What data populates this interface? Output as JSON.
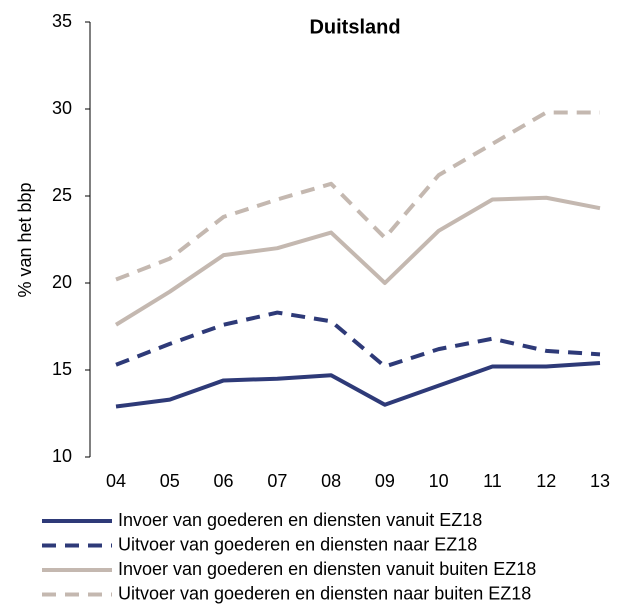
{
  "chart_data": {
    "type": "line",
    "title": "Duitsland",
    "y_label": "% van het bbp",
    "categories": [
      "04",
      "05",
      "06",
      "07",
      "08",
      "09",
      "10",
      "11",
      "12",
      "13"
    ],
    "ylim": [
      10,
      35
    ],
    "yticks": [
      10,
      15,
      20,
      25,
      30,
      35
    ],
    "grid": false,
    "series": [
      {
        "name": "Invoer van goederen en diensten vanuit EZ18",
        "color": "#2e3a78",
        "dash": false,
        "values": [
          12.9,
          13.3,
          14.4,
          14.5,
          14.7,
          13.0,
          14.1,
          15.2,
          15.2,
          15.4
        ]
      },
      {
        "name": "Uitvoer van goederen en diensten naar EZ18",
        "color": "#2e3a78",
        "dash": true,
        "values": [
          15.3,
          16.5,
          17.6,
          18.3,
          17.8,
          15.2,
          16.2,
          16.8,
          16.1,
          15.9
        ]
      },
      {
        "name": "Invoer van goederen en diensten vanuit buiten EZ18",
        "color": "#c4b8b0",
        "dash": false,
        "values": [
          17.6,
          19.5,
          21.6,
          22.0,
          22.9,
          20.0,
          23.0,
          24.8,
          24.9,
          24.3
        ]
      },
      {
        "name": "Uitvoer van goederen en diensten naar buiten EZ18",
        "color": "#c4b8b0",
        "dash": true,
        "values": [
          20.2,
          21.4,
          23.8,
          24.8,
          25.7,
          22.6,
          26.2,
          28.0,
          29.8,
          29.8
        ]
      }
    ]
  }
}
